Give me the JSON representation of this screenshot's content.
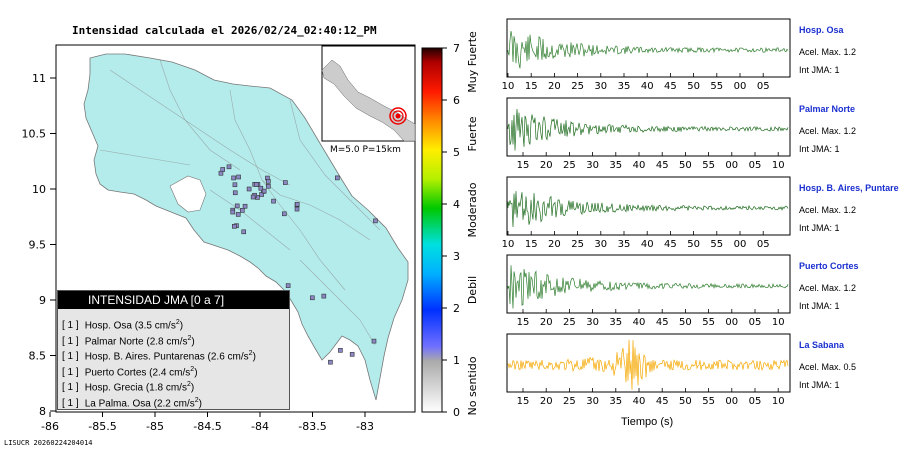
{
  "title": "Intensidad calculada el 2026/02/24_02:40:12_PM",
  "footer": "LISUCR 20260224204014",
  "map": {
    "lat_ticks": [
      "11",
      "10.5",
      "10",
      "9.5",
      "9",
      "8.5",
      "8"
    ],
    "lon_ticks": [
      "-86",
      "-85.5",
      "-85",
      "-84.5",
      "-84",
      "-83.5",
      "-83"
    ],
    "inset_label": "M=5.0 P=15km",
    "land_color": "#b4ecec",
    "station_count_shown": 45
  },
  "colorbar": {
    "ticks": [
      "0",
      "1",
      "2",
      "3",
      "4",
      "5",
      "6",
      "7"
    ],
    "categories": [
      "No sentido",
      "Debil",
      "Moderado",
      "Fuerte",
      "Muy Fuerte"
    ]
  },
  "legend": {
    "header": "INTENSIDAD JMA [0 a 7]",
    "rows": [
      {
        "code": "[ 1 ]",
        "name": "Hosp. Osa (3.5 cm/s",
        "sup": "2",
        "close": ")"
      },
      {
        "code": "[ 1 ]",
        "name": "Palmar Norte (2.8 cm/s",
        "sup": "2",
        "close": ")"
      },
      {
        "code": "[ 1 ]",
        "name": "Hosp. B. Aires. Puntarenas (2.6 cm/s",
        "sup": "2",
        "close": ")"
      },
      {
        "code": "[ 1 ]",
        "name": "Puerto Cortes (2.4 cm/s",
        "sup": "2",
        "close": ")"
      },
      {
        "code": "[ 1 ]",
        "name": "Hosp. Grecia (1.8 cm/s",
        "sup": "2",
        "close": ")"
      },
      {
        "code": "[ 1 ]",
        "name": "La Palma. Osa (2.2 cm/s",
        "sup": "2",
        "close": ")"
      }
    ]
  },
  "stations": [
    {
      "name": "Hosp. Osa",
      "acel": "Acel. Max. 1.2",
      "int": "Int JMA: 1",
      "color": "#2e7d2e",
      "ticks": [
        "10",
        "15",
        "20",
        "25",
        "30",
        "35",
        "40",
        "45",
        "50",
        "55",
        "00",
        "05"
      ]
    },
    {
      "name": "Palmar Norte",
      "acel": "Acel. Max. 1.2",
      "int": "Int JMA: 1",
      "color": "#1e6b1e",
      "ticks": [
        "15",
        "20",
        "25",
        "30",
        "35",
        "40",
        "45",
        "50",
        "55",
        "00",
        "05",
        "10"
      ]
    },
    {
      "name": "Hosp. B. Aires, Puntare",
      "acel": "Acel. Max. 1.2",
      "int": "Int JMA: 1",
      "color": "#1e6b1e",
      "ticks": [
        "10",
        "15",
        "20",
        "25",
        "30",
        "35",
        "40",
        "45",
        "50",
        "55",
        "00",
        "05"
      ]
    },
    {
      "name": "Puerto Cortes",
      "acel": "Acel. Max. 1.2",
      "int": "Int JMA: 1",
      "color": "#2e7d2e",
      "ticks": [
        "15",
        "20",
        "25",
        "30",
        "35",
        "40",
        "45",
        "50",
        "55",
        "00",
        "05",
        "10"
      ]
    },
    {
      "name": "La Sabana",
      "acel": "Acel. Max. 0.5",
      "int": "Int JMA: 1",
      "color": "#f5a800",
      "ticks": [
        "15",
        "20",
        "25",
        "30",
        "35",
        "40",
        "45",
        "50",
        "55",
        "00",
        "05",
        "10"
      ]
    }
  ],
  "time_axis_label": "Tiempo (s)"
}
